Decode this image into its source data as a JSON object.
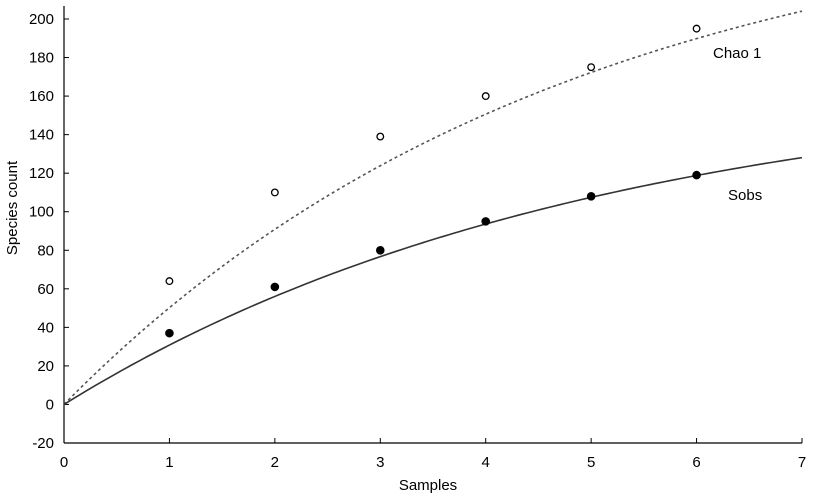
{
  "chart_data": {
    "type": "scatter",
    "title": "",
    "xlabel": "Samples",
    "ylabel": "Species count",
    "xlim": [
      0,
      7
    ],
    "ylim": [
      -20,
      205
    ],
    "x_ticks": [
      "0",
      "1",
      "2",
      "3",
      "4",
      "5",
      "6",
      "7"
    ],
    "y_ticks": [
      "-20",
      "0",
      "20",
      "40",
      "60",
      "80",
      "100",
      "120",
      "140",
      "160",
      "180",
      "200"
    ],
    "grid": false,
    "series": [
      {
        "name": "Chao 1",
        "marker": "open-circle",
        "line_style": "dotted",
        "color": "#555555",
        "x": [
          1,
          2,
          3,
          4,
          5,
          6
        ],
        "y": [
          64,
          110,
          139,
          160,
          175,
          195
        ],
        "fit_asymptote": 265,
        "fit_rate": 0.21
      },
      {
        "name": "Sobs",
        "marker": "filled-circle",
        "line_style": "solid",
        "color": "#333333",
        "x": [
          1,
          2,
          3,
          4,
          5,
          6
        ],
        "y": [
          37,
          61,
          80,
          95,
          108,
          119
        ],
        "fit_asymptote": 170,
        "fit_rate": 0.2
      }
    ]
  }
}
